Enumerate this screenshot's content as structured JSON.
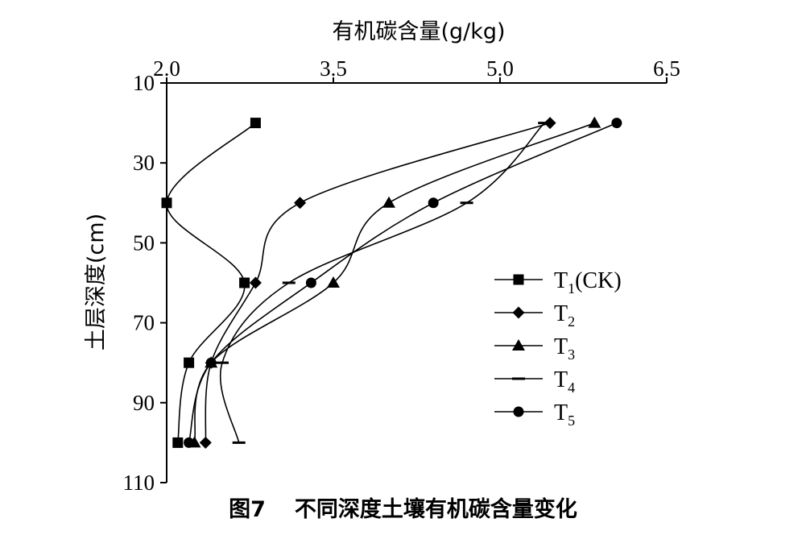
{
  "figure": {
    "label": "图7",
    "caption": "不同深度土壤有机碳含量变化"
  },
  "chart_data": {
    "type": "line",
    "title": "",
    "xlabel": "有机碳含量(g/kg)",
    "ylabel": "土层深度(cm)",
    "x_axis_position": "top",
    "y_axis_inverted": true,
    "xlim": [
      2.0,
      6.5
    ],
    "ylim": [
      10,
      110
    ],
    "xticks": [
      "2.0",
      "3.5",
      "5.0",
      "6.5"
    ],
    "yticks": [
      "10",
      "30",
      "50",
      "70",
      "90",
      "110"
    ],
    "grid": false,
    "legend_position": "right",
    "series": [
      {
        "name": "T1(CK)",
        "sub": "1",
        "base": "T",
        "suffix": "(CK)",
        "marker": "square",
        "points": [
          [
            2.8,
            20
          ],
          [
            2.0,
            40
          ],
          [
            2.7,
            60
          ],
          [
            2.2,
            80
          ],
          [
            2.1,
            100
          ]
        ]
      },
      {
        "name": "T2",
        "sub": "2",
        "base": "T",
        "suffix": "",
        "marker": "diamond",
        "points": [
          [
            5.45,
            20
          ],
          [
            3.2,
            40
          ],
          [
            2.8,
            60
          ],
          [
            2.4,
            80
          ],
          [
            2.35,
            100
          ]
        ]
      },
      {
        "name": "T3",
        "sub": "3",
        "base": "T",
        "suffix": "",
        "marker": "triangle",
        "points": [
          [
            5.85,
            20
          ],
          [
            4.0,
            40
          ],
          [
            3.5,
            60
          ],
          [
            2.4,
            80
          ],
          [
            2.25,
            100
          ]
        ]
      },
      {
        "name": "T4",
        "sub": "4",
        "base": "T",
        "suffix": "",
        "marker": "dash",
        "points": [
          [
            5.4,
            20
          ],
          [
            4.7,
            40
          ],
          [
            3.1,
            60
          ],
          [
            2.5,
            80
          ],
          [
            2.65,
            100
          ]
        ]
      },
      {
        "name": "T5",
        "sub": "5",
        "base": "T",
        "suffix": "",
        "marker": "circle",
        "points": [
          [
            6.05,
            20
          ],
          [
            4.4,
            40
          ],
          [
            3.3,
            60
          ],
          [
            2.4,
            80
          ],
          [
            2.2,
            100
          ]
        ]
      }
    ]
  }
}
